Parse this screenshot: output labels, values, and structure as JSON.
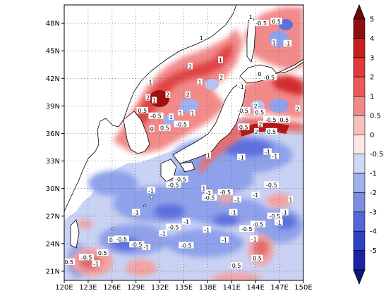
{
  "map": {
    "lat_ticks": [
      "21N",
      "24N",
      "27N",
      "30N",
      "33N",
      "36N",
      "39N",
      "42N",
      "45N",
      "48N"
    ],
    "lon_ticks": [
      "120E",
      "123E",
      "126E",
      "129E",
      "132E",
      "135E",
      "138E",
      "141E",
      "144E",
      "147E",
      "150E"
    ],
    "extent": {
      "lon_min": 120,
      "lon_max": 150,
      "lat_min": 20,
      "lat_max": 50
    },
    "grid": "dotted",
    "contour_labels": [
      {
        "text": "1",
        "lon": 130.8,
        "lat": 41.6
      },
      {
        "text": "2",
        "lon": 133.0,
        "lat": 40.2
      },
      {
        "text": "2",
        "lon": 130.5,
        "lat": 39.9
      },
      {
        "text": "1",
        "lon": 131.3,
        "lat": 39.6
      },
      {
        "text": "2",
        "lon": 135.5,
        "lat": 40.2
      },
      {
        "text": "1",
        "lon": 134.6,
        "lat": 38.2
      },
      {
        "text": "0.5",
        "lon": 129.8,
        "lat": 38.5
      },
      {
        "text": "-0.5",
        "lon": 131.5,
        "lat": 37.9
      },
      {
        "text": "0.5",
        "lon": 132.6,
        "lat": 36.6
      },
      {
        "text": "-0.5",
        "lon": 134.7,
        "lat": 37.0
      },
      {
        "text": "1",
        "lon": 133.4,
        "lat": 37.8
      },
      {
        "text": "1",
        "lon": 137.2,
        "lat": 46.4
      },
      {
        "text": "1",
        "lon": 139.6,
        "lat": 44.0
      },
      {
        "text": "2",
        "lon": 135.8,
        "lat": 43.3
      },
      {
        "text": "1",
        "lon": 137.0,
        "lat": 41.6
      },
      {
        "text": "1",
        "lon": 136.1,
        "lat": 38.2
      },
      {
        "text": "2",
        "lon": 139.7,
        "lat": 42.1
      },
      {
        "text": "1",
        "lon": 138.1,
        "lat": 33.6
      },
      {
        "text": "1",
        "lon": 137.5,
        "lat": 30.0
      },
      {
        "text": "-0.5",
        "lon": 134.6,
        "lat": 31.0
      },
      {
        "text": "-0.5",
        "lon": 133.7,
        "lat": 30.4
      },
      {
        "text": "-1",
        "lon": 130.9,
        "lat": 29.8
      },
      {
        "text": "-0.5",
        "lon": 138.2,
        "lat": 29.0
      },
      {
        "text": "-1",
        "lon": 138.1,
        "lat": 29.5
      },
      {
        "text": "-0.5",
        "lon": 140.2,
        "lat": 29.6
      },
      {
        "text": "-1",
        "lon": 141.7,
        "lat": 28.8
      },
      {
        "text": "-1",
        "lon": 144.0,
        "lat": 29.3
      },
      {
        "text": "-0.5",
        "lon": 146.0,
        "lat": 30.4
      },
      {
        "text": "-1",
        "lon": 145.5,
        "lat": 34.0
      },
      {
        "text": "-1",
        "lon": 142.2,
        "lat": 33.4
      },
      {
        "text": "-1",
        "lon": 146.4,
        "lat": 33.5
      },
      {
        "text": "-1",
        "lon": 129.0,
        "lat": 27.4
      },
      {
        "text": "-1",
        "lon": 135.3,
        "lat": 26.4
      },
      {
        "text": "-1",
        "lon": 141.2,
        "lat": 27.4
      },
      {
        "text": "-1",
        "lon": 147.6,
        "lat": 27.4
      },
      {
        "text": "-0.5",
        "lon": 146.4,
        "lat": 27.0
      },
      {
        "text": "-0.5",
        "lon": 144.3,
        "lat": 26.1
      },
      {
        "text": "-0.5",
        "lon": 142.9,
        "lat": 25.6
      },
      {
        "text": "-1",
        "lon": 146.9,
        "lat": 26.3
      },
      {
        "text": "-1",
        "lon": 132.4,
        "lat": 25.1
      },
      {
        "text": "-0.5",
        "lon": 133.7,
        "lat": 25.8
      },
      {
        "text": "-1",
        "lon": 143.8,
        "lat": 24.5
      },
      {
        "text": "-1",
        "lon": 140.1,
        "lat": 24.4
      },
      {
        "text": "-1",
        "lon": 137.9,
        "lat": 25.5
      },
      {
        "text": "-0.5",
        "lon": 135.3,
        "lat": 23.8
      },
      {
        "text": "-0.5",
        "lon": 129.1,
        "lat": 23.9
      },
      {
        "text": "-1",
        "lon": 130.3,
        "lat": 23.6
      },
      {
        "text": "0.5",
        "lon": 126.2,
        "lat": 24.4
      },
      {
        "text": "-0.5",
        "lon": 127.2,
        "lat": 24.5
      },
      {
        "text": "-1",
        "lon": 124.0,
        "lat": 21.8
      },
      {
        "text": "0.5",
        "lon": 124.8,
        "lat": 23.0
      },
      {
        "text": "-0.5",
        "lon": 122.8,
        "lat": 22.5
      },
      {
        "text": "0.5",
        "lon": 120.6,
        "lat": 22.0
      },
      {
        "text": "0.5",
        "lon": 141.6,
        "lat": 21.6
      },
      {
        "text": "0.5",
        "lon": 144.2,
        "lat": 22.4
      },
      {
        "text": "1",
        "lon": 148.4,
        "lat": 28.8
      },
      {
        "text": "0",
        "lon": 131.0,
        "lat": 36.5
      },
      {
        "text": "-0.5",
        "lon": 142.4,
        "lat": 38.5
      },
      {
        "text": "-1",
        "lon": 142.2,
        "lat": 41.1
      },
      {
        "text": "0.5",
        "lon": 144.5,
        "lat": 38.3
      },
      {
        "text": "2",
        "lon": 144.6,
        "lat": 37.0
      },
      {
        "text": "2",
        "lon": 144.1,
        "lat": 36.2
      },
      {
        "text": "0.5",
        "lon": 142.5,
        "lat": 36.7
      },
      {
        "text": "0.5",
        "lon": 146.0,
        "lat": 36.2
      },
      {
        "text": "2",
        "lon": 144.0,
        "lat": 39.0
      },
      {
        "text": "-0.5",
        "lon": 145.9,
        "lat": 37.5
      },
      {
        "text": "0.5",
        "lon": 147.6,
        "lat": 37.5
      },
      {
        "text": "2",
        "lon": 149.3,
        "lat": 38.7
      },
      {
        "text": "-0.5",
        "lon": 145.7,
        "lat": 42.1
      },
      {
        "text": "0",
        "lon": 144.5,
        "lat": 42.5
      },
      {
        "text": "-1",
        "lon": 148.0,
        "lat": 45.8
      },
      {
        "text": "0.5",
        "lon": 146.6,
        "lat": 48.2
      },
      {
        "text": "-0.5",
        "lon": 144.7,
        "lat": 48.0
      },
      {
        "text": "1",
        "lon": 143.4,
        "lat": 48.7
      },
      {
        "text": "1",
        "lon": 146.3,
        "lat": 45.9
      }
    ]
  },
  "colorbar": {
    "labels": [
      "5",
      "4",
      "3",
      "2",
      "1",
      "0.5",
      "0",
      "-0.5",
      "-1",
      "-2",
      "-3",
      "-4",
      "-5"
    ],
    "colors": [
      "#8e0f0f",
      "#c81e1e",
      "#e03a3a",
      "#ea5a5a",
      "#f08a8a",
      "#f6c0c0",
      "#fde8e8",
      "#cfd7f4",
      "#9fb0ec",
      "#7b8ee4",
      "#5466d8",
      "#2f3fc6",
      "#1b23a8"
    ],
    "over_color": "#6e0a0a",
    "under_color": "#10157a"
  }
}
